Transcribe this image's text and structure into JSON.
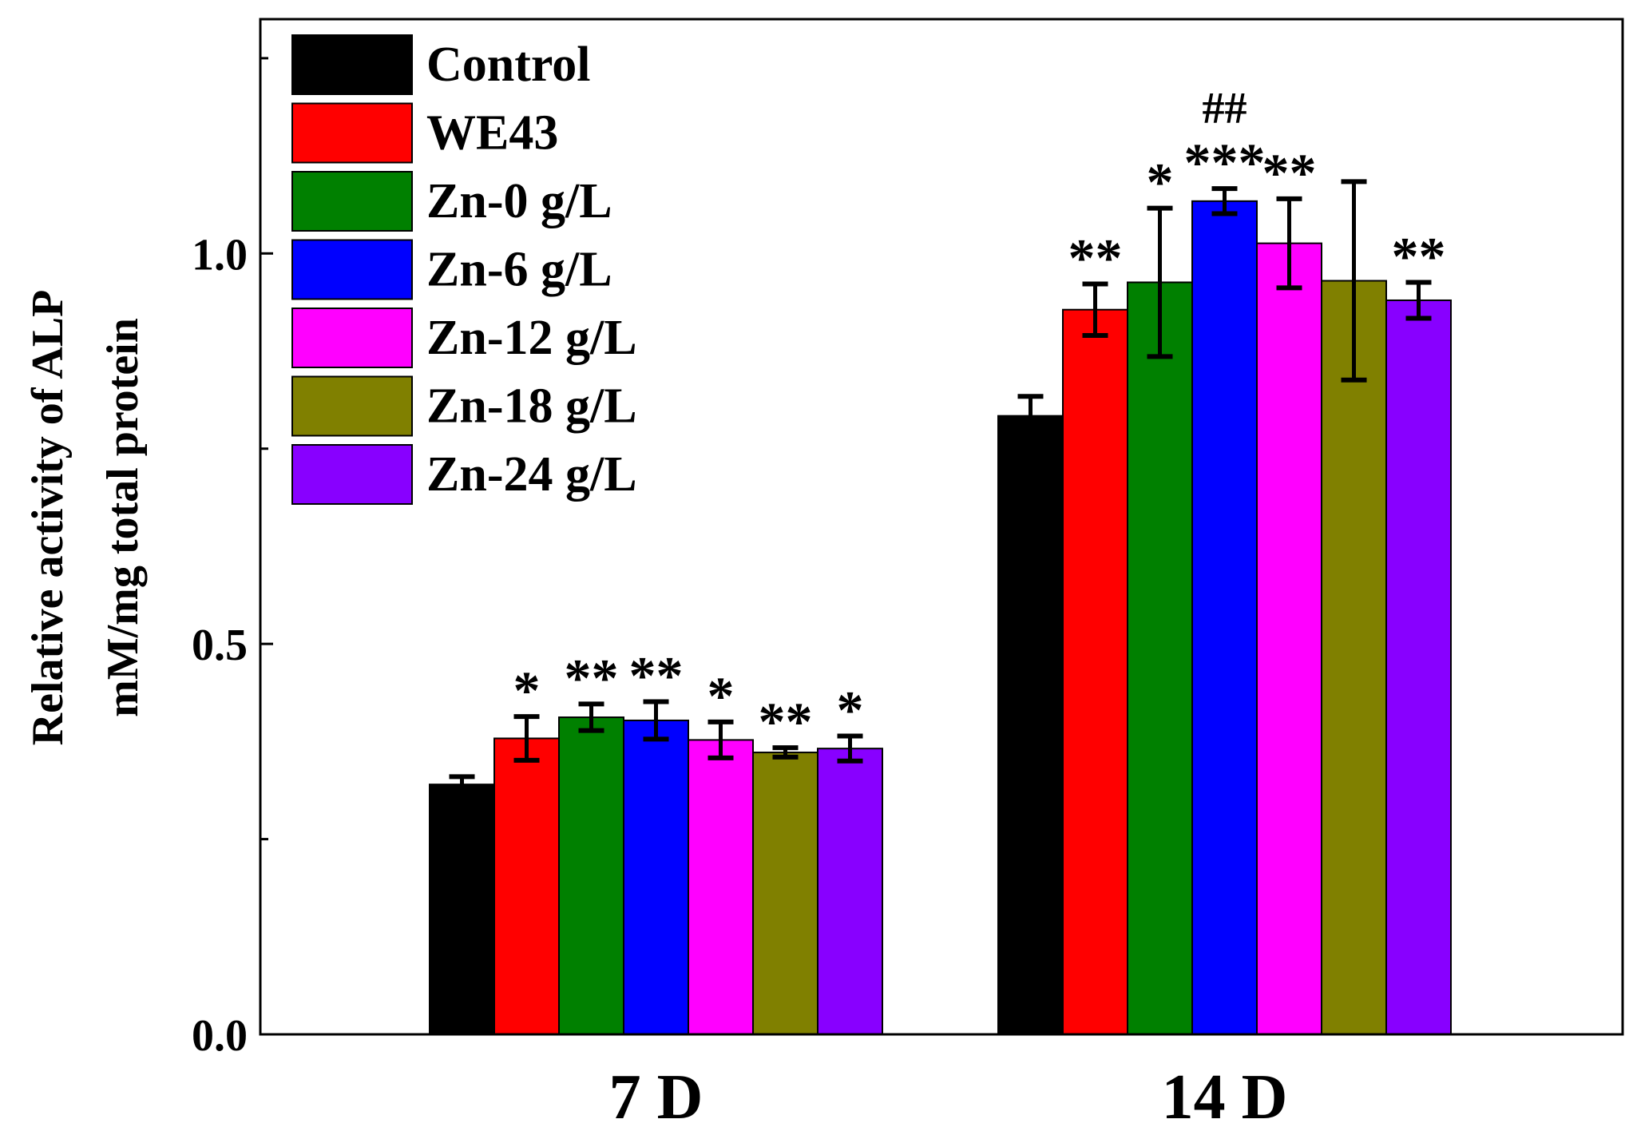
{
  "chart_data": {
    "type": "bar",
    "title": "",
    "xlabel": "",
    "ylabel_line1": "Relative activity of ALP",
    "ylabel_line2": "mM/mg total protein",
    "ylim": [
      0,
      1.3
    ],
    "yticks": [
      0.0,
      0.5,
      1.0
    ],
    "ytick_labels": [
      "0.0",
      "0.5",
      "1.0"
    ],
    "y_minor_ticks": [
      0.25,
      0.75,
      1.25
    ],
    "categories": [
      "7 D",
      "14 D"
    ],
    "legend_position": "top-left",
    "series": [
      {
        "name": "Control",
        "color": "#000000",
        "values": [
          0.32,
          0.792
        ],
        "errors": [
          0.01,
          0.025
        ],
        "marks": [
          "",
          ""
        ]
      },
      {
        "name": "WE43",
        "color": "#ff0000",
        "values": [
          0.379,
          0.928
        ],
        "errors": [
          0.028,
          0.033
        ],
        "marks": [
          "*",
          "**"
        ]
      },
      {
        "name": "Zn-0 g/L",
        "color": "#008000",
        "values": [
          0.406,
          0.963
        ],
        "errors": [
          0.017,
          0.095
        ],
        "marks": [
          "**",
          "*"
        ]
      },
      {
        "name": "Zn-6 g/L",
        "color": "#0000ff",
        "values": [
          0.402,
          1.067
        ],
        "errors": [
          0.024,
          0.016
        ],
        "marks": [
          "**",
          "***"
        ]
      },
      {
        "name": "Zn-12 g/L",
        "color": "#ff00ff",
        "values": [
          0.377,
          1.013
        ],
        "errors": [
          0.023,
          0.057
        ],
        "marks": [
          "*",
          "**"
        ]
      },
      {
        "name": "Zn-18 g/L",
        "color": "#808000",
        "values": [
          0.361,
          0.965
        ],
        "errors": [
          0.006,
          0.127
        ],
        "marks": [
          "**",
          ""
        ]
      },
      {
        "name": "Zn-24 g/L",
        "color": "#8800ff",
        "values": [
          0.366,
          0.94
        ],
        "errors": [
          0.016,
          0.023
        ],
        "marks": [
          "*",
          "**"
        ]
      }
    ],
    "annotations": [
      {
        "text": "##",
        "series": "Zn-6 g/L",
        "category": "14 D"
      }
    ]
  }
}
